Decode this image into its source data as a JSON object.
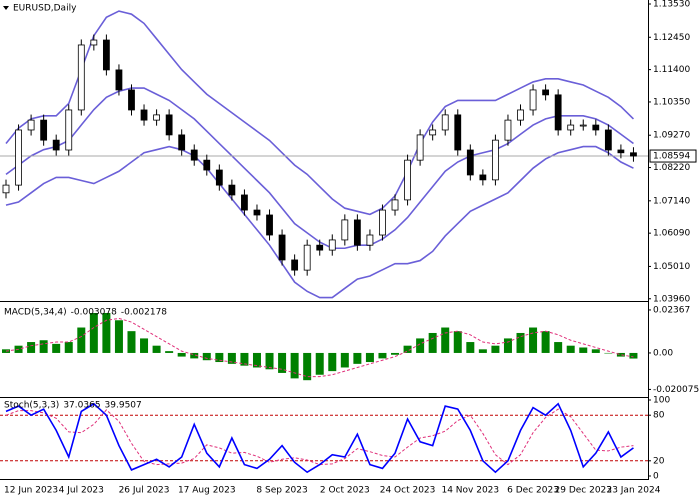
{
  "chart_data": [
    {
      "type": "candlestick",
      "title": "EURUSD,Daily",
      "categories": [
        null,
        null,
        "12 Jun 2023",
        null,
        null,
        null,
        "4 Jul 2023",
        null,
        null,
        null,
        null,
        "26 Jul 2023",
        null,
        null,
        null,
        null,
        "17 Aug 2023",
        null,
        null,
        null,
        null,
        null,
        "8 Sep 2023",
        null,
        null,
        null,
        null,
        "2 Oct 2023",
        null,
        null,
        null,
        null,
        "24 Oct 2023",
        null,
        null,
        null,
        null,
        "14 Nov 2023",
        null,
        null,
        null,
        null,
        "6 Dec 2023",
        null,
        null,
        null,
        "29 Dec 2023",
        null,
        null,
        null,
        "23 Jan 2024"
      ],
      "open": [
        1.074,
        1.0765,
        1.0944,
        1.0976,
        1.0911,
        1.0879,
        1.1009,
        1.122,
        1.1236,
        1.1139,
        1.1074,
        1.1009,
        1.0976,
        1.0993,
        1.0928,
        1.0879,
        1.0846,
        1.0814,
        1.0765,
        1.0733,
        1.0684,
        1.0668,
        1.0603,
        1.0522,
        1.0489,
        1.057,
        1.0554,
        1.0587,
        1.0652,
        1.057,
        1.0603,
        1.0684,
        1.0717,
        1.0846,
        1.0928,
        1.0944,
        1.0993,
        1.0879,
        1.0798,
        1.0782,
        1.0911,
        1.0976,
        1.1009,
        1.1074,
        1.1058,
        1.0944,
        1.096,
        1.096,
        1.0944,
        1.0879,
        1.087
      ],
      "high": [
        1.0783,
        1.0962,
        1.0994,
        1.0994,
        1.0929,
        1.1027,
        1.1238,
        1.1254,
        1.1254,
        1.1157,
        1.1092,
        1.1027,
        1.1011,
        1.1011,
        1.0946,
        1.0897,
        1.0864,
        1.0832,
        1.0783,
        1.0751,
        1.0702,
        1.0686,
        1.0621,
        1.054,
        1.0588,
        1.0588,
        1.0605,
        1.067,
        1.067,
        1.0621,
        1.0702,
        1.0735,
        1.0864,
        1.0946,
        1.0962,
        1.1011,
        1.1011,
        1.0897,
        1.0816,
        1.0929,
        1.0994,
        1.1027,
        1.1092,
        1.1092,
        1.1076,
        1.0978,
        1.0978,
        1.0978,
        1.0962,
        1.0897,
        1.0888
      ],
      "low": [
        1.0722,
        1.0747,
        1.0926,
        1.0893,
        1.0861,
        1.0861,
        1.0991,
        1.1202,
        1.1121,
        1.1056,
        1.0991,
        1.0958,
        1.0958,
        1.091,
        1.0861,
        1.0828,
        1.0796,
        1.0747,
        1.0715,
        1.0666,
        1.065,
        1.0585,
        1.0504,
        1.0471,
        1.0471,
        1.0536,
        1.0536,
        1.0569,
        1.0552,
        1.0552,
        1.0585,
        1.0666,
        1.0699,
        1.0828,
        1.091,
        1.0926,
        1.0861,
        1.078,
        1.0764,
        1.0764,
        1.0893,
        1.0958,
        1.0991,
        1.104,
        1.0926,
        1.0926,
        1.0942,
        1.0926,
        1.0861,
        1.0852,
        1.0841
      ],
      "close": [
        1.0765,
        1.0944,
        1.0976,
        1.0911,
        1.0879,
        1.1009,
        1.122,
        1.1236,
        1.1139,
        1.1074,
        1.1009,
        1.0976,
        1.0993,
        1.0928,
        1.0879,
        1.0846,
        1.0814,
        1.0765,
        1.0733,
        1.0684,
        1.0668,
        1.0603,
        1.0522,
        1.0489,
        1.057,
        1.0554,
        1.0587,
        1.0652,
        1.057,
        1.0603,
        1.0684,
        1.0717,
        1.0846,
        1.0928,
        1.0944,
        1.0993,
        1.0879,
        1.0798,
        1.0782,
        1.0911,
        1.0976,
        1.1009,
        1.1074,
        1.1058,
        1.0944,
        1.096,
        1.096,
        1.0944,
        1.0879,
        1.087,
        1.08594
      ],
      "up_color": "#ffffff",
      "down_color": "#000000",
      "bands": {
        "color": "#6a5fd8",
        "upper": [
          1.09,
          1.095,
          1.098,
          1.099,
          1.099,
          1.103,
          1.114,
          1.125,
          1.131,
          1.133,
          1.132,
          1.129,
          1.124,
          1.119,
          1.114,
          1.11,
          1.106,
          1.103,
          1.1,
          1.097,
          1.094,
          1.091,
          1.087,
          1.083,
          1.08,
          1.076,
          1.072,
          1.069,
          1.068,
          1.067,
          1.069,
          1.073,
          1.081,
          1.09,
          1.097,
          1.102,
          1.104,
          1.104,
          1.104,
          1.104,
          1.106,
          1.108,
          1.11,
          1.111,
          1.111,
          1.11,
          1.109,
          1.107,
          1.105,
          1.102,
          1.098
        ],
        "middle": [
          1.08,
          1.083,
          1.086,
          1.088,
          1.089,
          1.091,
          1.096,
          1.101,
          1.105,
          1.107,
          1.108,
          1.108,
          1.106,
          1.104,
          1.101,
          1.098,
          1.094,
          1.09,
          1.086,
          1.082,
          1.078,
          1.074,
          1.069,
          1.064,
          1.061,
          1.058,
          1.056,
          1.056,
          1.057,
          1.057,
          1.059,
          1.062,
          1.066,
          1.071,
          1.076,
          1.081,
          1.084,
          1.086,
          1.087,
          1.088,
          1.09,
          1.093,
          1.096,
          1.098,
          1.099,
          1.099,
          1.099,
          1.098,
          1.096,
          1.093,
          1.09
        ],
        "lower": [
          1.07,
          1.071,
          1.074,
          1.077,
          1.079,
          1.079,
          1.078,
          1.077,
          1.079,
          1.081,
          1.084,
          1.087,
          1.088,
          1.089,
          1.088,
          1.086,
          1.082,
          1.077,
          1.072,
          1.067,
          1.062,
          1.057,
          1.051,
          1.045,
          1.042,
          1.04,
          1.04,
          1.043,
          1.046,
          1.047,
          1.049,
          1.051,
          1.051,
          1.052,
          1.055,
          1.06,
          1.064,
          1.068,
          1.07,
          1.072,
          1.074,
          1.078,
          1.082,
          1.085,
          1.087,
          1.088,
          1.089,
          1.089,
          1.087,
          1.084,
          1.082
        ]
      },
      "ylim": [
        1.0392,
        1.1366
      ],
      "yticks": [
        {
          "value": 1.1353,
          "label": "1.13530"
        },
        {
          "value": 1.1245,
          "label": "1.12450"
        },
        {
          "value": 1.114,
          "label": "1.11400"
        },
        {
          "value": 1.1035,
          "label": "1.10350"
        },
        {
          "value": 1.0927,
          "label": "1.09270"
        },
        {
          "value": 1.0822,
          "label": "1.08220"
        },
        {
          "value": 1.0714,
          "label": "1.07140"
        },
        {
          "value": 1.0609,
          "label": "1.06090"
        },
        {
          "value": 1.0501,
          "label": "1.05010"
        },
        {
          "value": 1.0396,
          "label": "1.03960"
        }
      ]
    },
    {
      "type": "macd",
      "title": "MACD(5,34,4)",
      "color": "#008000",
      "signal_color": "#e0307a",
      "values": [
        0.002,
        0.004,
        0.006,
        0.007,
        0.005,
        0.006,
        0.014,
        0.022,
        0.022,
        0.018,
        0.012,
        0.008,
        0.004,
        0.001,
        -0.002,
        -0.003,
        -0.004,
        -0.005,
        -0.006,
        -0.007,
        -0.008,
        -0.009,
        -0.011,
        -0.014,
        -0.015,
        -0.012,
        -0.01,
        -0.008,
        -0.006,
        -0.005,
        -0.003,
        -0.001,
        0.004,
        0.008,
        0.011,
        0.014,
        0.012,
        0.006,
        0.002,
        0.004,
        0.008,
        0.011,
        0.014,
        0.012,
        0.006,
        0.004,
        0.003,
        0.002,
        0.0,
        -0.002,
        -0.003078
      ],
      "signal": [
        0.001,
        0.002,
        0.004,
        0.005,
        0.006,
        0.006,
        0.009,
        0.014,
        0.018,
        0.019,
        0.017,
        0.013,
        0.009,
        0.005,
        0.001,
        -0.001,
        -0.003,
        -0.004,
        -0.005,
        -0.006,
        -0.007,
        -0.008,
        -0.009,
        -0.011,
        -0.013,
        -0.013,
        -0.012,
        -0.01,
        -0.008,
        -0.006,
        -0.004,
        -0.002,
        0.001,
        0.005,
        0.008,
        0.011,
        0.012,
        0.01,
        0.006,
        0.005,
        0.006,
        0.009,
        0.011,
        0.012,
        0.01,
        0.007,
        0.005,
        0.003,
        0.001,
        -0.001,
        -0.002178
      ],
      "ylim": [
        -0.0237,
        0.0275
      ],
      "yticks": [
        0.02367,
        {
          "value": 0,
          "label": "0.00"
        },
        -0.020075
      ]
    },
    {
      "type": "stochastic",
      "title": "Stoch(5,3,3)",
      "k_color": "#0000ff",
      "d_color": "#e0307a",
      "levels": [
        20,
        80
      ],
      "level_color": "#c00000",
      "k": [
        85,
        92,
        80,
        88,
        60,
        25,
        85,
        95,
        80,
        40,
        8,
        15,
        22,
        12,
        25,
        68,
        30,
        12,
        50,
        15,
        10,
        22,
        40,
        18,
        5,
        15,
        28,
        25,
        55,
        15,
        10,
        30,
        75,
        45,
        40,
        92,
        88,
        60,
        20,
        5,
        20,
        60,
        90,
        80,
        95,
        60,
        12,
        30,
        58,
        25,
        37.0365
      ],
      "d": [
        80,
        86,
        86,
        83,
        76,
        58,
        57,
        68,
        87,
        72,
        43,
        19,
        15,
        16,
        17,
        23,
        41,
        37,
        30,
        31,
        26,
        18,
        22,
        24,
        21,
        15,
        16,
        23,
        36,
        32,
        27,
        25,
        38,
        50,
        53,
        59,
        73,
        80,
        56,
        28,
        15,
        28,
        57,
        77,
        88,
        78,
        56,
        34,
        33,
        38,
        39.9507
      ],
      "ylim": [
        0,
        100
      ],
      "yticks": [
        100,
        80,
        20,
        0
      ]
    }
  ]
}
